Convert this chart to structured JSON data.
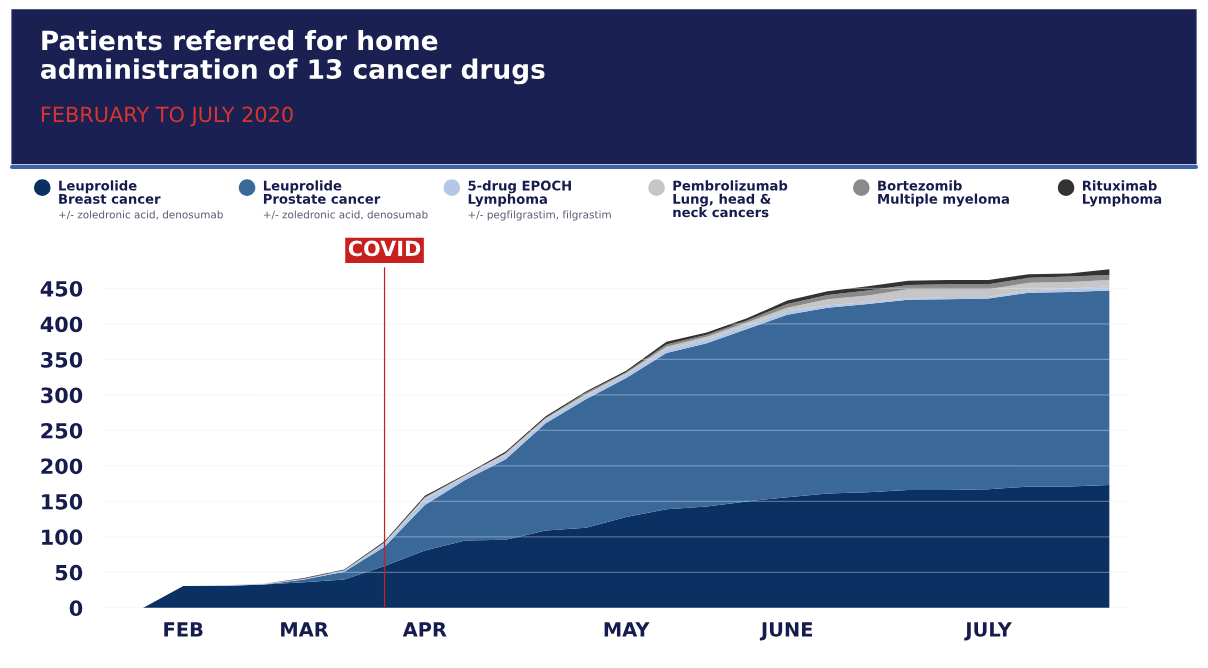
{
  "chart_data": {
    "type": "area",
    "stacked": true,
    "title": "Patients referred for home\nadministration of 13 cancer drugs",
    "subtitle": "FEBRUARY TO JULY 2020",
    "categories": [
      null,
      "FEB",
      null,
      null,
      "MAR",
      null,
      null,
      "APR",
      null,
      null,
      null,
      null,
      "MAY",
      null,
      null,
      null,
      "JUNE",
      null,
      null,
      null,
      null,
      "JULY",
      null,
      null,
      null
    ],
    "series": [
      {
        "name": "Leuprolide\nBreast cancer",
        "color": "#0b3163",
        "values": [
          0,
          31,
          31,
          33,
          36,
          40,
          59,
          81,
          95,
          96,
          109,
          113,
          128,
          139,
          143,
          150,
          156,
          161,
          163,
          166,
          166,
          167,
          171,
          171,
          173
        ]
      },
      {
        "name": "Leuprolide\nProstate cancer",
        "color": "#3a6899",
        "values": [
          0,
          0,
          0,
          0,
          4,
          11,
          27,
          64,
          85,
          113,
          151,
          181,
          196,
          220,
          230,
          243,
          257,
          262,
          265,
          268,
          269,
          269,
          273,
          274,
          274
        ]
      },
      {
        "name": "5-drug EPOCH\nLymphoma",
        "color": "#b4c8e6",
        "values": [
          0,
          0,
          1,
          1,
          1,
          2,
          5,
          8,
          5,
          6,
          5,
          5,
          5,
          5,
          5,
          5,
          5,
          3,
          3,
          2,
          3,
          2,
          3,
          5,
          6
        ]
      },
      {
        "name": "Pembrolizumab\nLung, head &\nneck cancers",
        "color": "#c6c6c6",
        "values": [
          0,
          0,
          0,
          0,
          0,
          0,
          1,
          2,
          1,
          2,
          2,
          2,
          2,
          4,
          4,
          4,
          5,
          9,
          9,
          13,
          11,
          11,
          11,
          9,
          9
        ]
      },
      {
        "name": "Bortezomib\nMultiple myeloma",
        "color": "#8a8a8a",
        "values": [
          0,
          0,
          0,
          0,
          0,
          0,
          0,
          1,
          1,
          1,
          1,
          2,
          1,
          3,
          3,
          3,
          5,
          6,
          7,
          6,
          7,
          7,
          7,
          8,
          7
        ]
      },
      {
        "name": "Rituximab\nLymphoma",
        "color": "#333333",
        "values": [
          0,
          0,
          0,
          0,
          1,
          1,
          2,
          2,
          1,
          2,
          2,
          2,
          2,
          4,
          3,
          3,
          5,
          5,
          6,
          6,
          6,
          6,
          5,
          4,
          8
        ]
      }
    ],
    "annotations": [
      "+/- zoledronic acid, denosumab",
      "+/- zoledronic acid, denosumab",
      "+/- pegfilgrastim, filgrastim",
      "COVID"
    ],
    "ylim": [
      0,
      480
    ],
    "yticks": [
      0,
      50,
      100,
      150,
      200,
      250,
      300,
      350,
      400,
      450
    ],
    "grid": "y",
    "legend": "top"
  }
}
